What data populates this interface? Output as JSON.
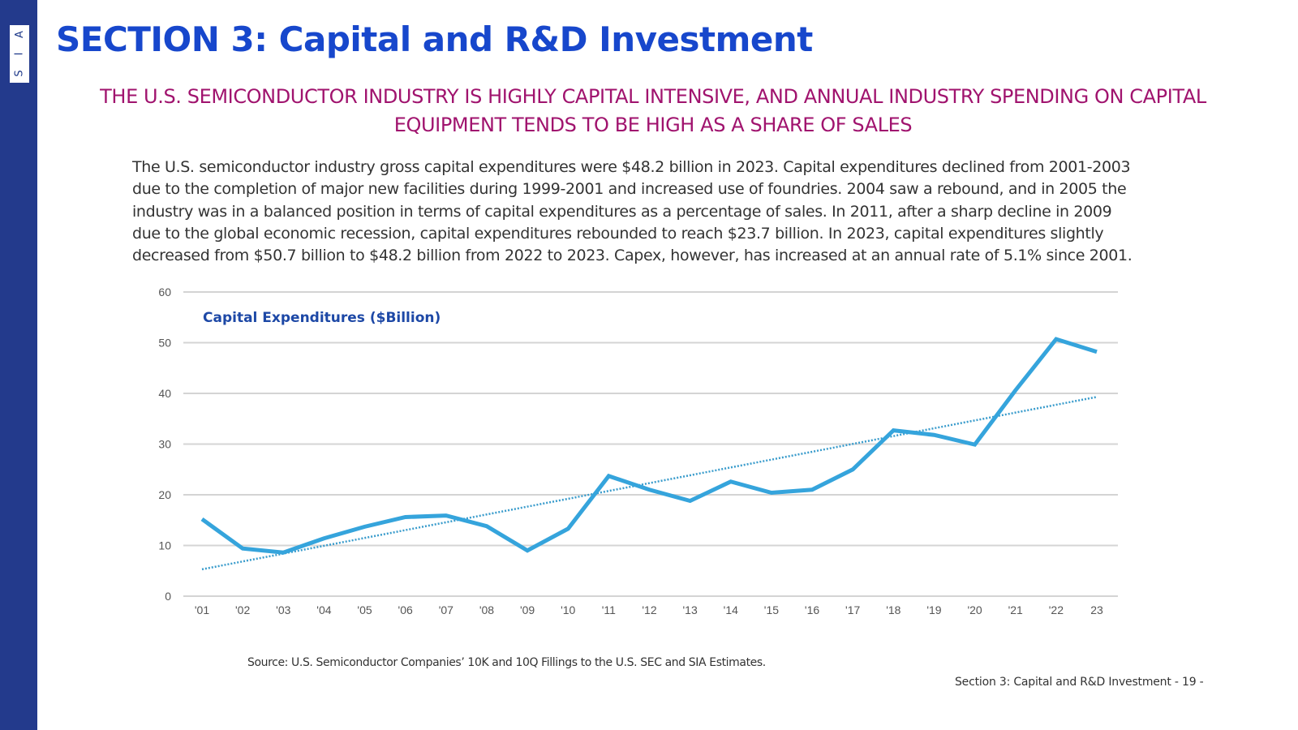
{
  "logo": {
    "letters": [
      "A",
      "I",
      "S"
    ]
  },
  "header": {
    "title": "SECTION 3: Capital and R&D Investment",
    "subtitle": "THE U.S. SEMICONDUCTOR INDUSTRY IS HIGHLY CAPITAL INTENSIVE, AND ANNUAL INDUSTRY SPENDING ON CAPITAL EQUIPMENT TENDS TO BE HIGH AS A SHARE OF SALES"
  },
  "body": {
    "paragraph": "The U.S. semiconductor industry gross capital expenditures were $48.2 billion in 2023. Capital expenditures declined from 2001-2003 due to the completion of major new facilities during 1999-2001 and increased use of foundries. 2004 saw a rebound, and in 2005 the industry was in a balanced position in terms of capital expenditures as a percentage of sales. In 2011, after a sharp decline in 2009 due to the global economic recession, capital expenditures rebounded to reach $23.7 billion. In 2023, capital expenditures slightly decreased from $50.7 billion to $48.2 billion from 2022 to 2023. Capex, however, has increased at an annual rate of 5.1% since 2001."
  },
  "chart_data": {
    "type": "line",
    "title": "Capital Expenditures ($Billion)",
    "xlabel": "",
    "ylabel": "",
    "categories": [
      "'01",
      "'02",
      "'03",
      "'04",
      "'05",
      "'06",
      "'07",
      "'08",
      "'09",
      "'10",
      "'11",
      "'12",
      "'13",
      "'14",
      "'15",
      "'16",
      "'17",
      "'18",
      "'19",
      "'20",
      "'21",
      "'22",
      "23"
    ],
    "series": [
      {
        "name": "Capital Expenditures",
        "values": [
          15.2,
          9.4,
          8.6,
          11.4,
          13.7,
          15.6,
          15.9,
          13.8,
          9.0,
          13.3,
          23.7,
          21.0,
          18.8,
          22.6,
          20.4,
          21.0,
          25.0,
          32.7,
          31.8,
          29.9,
          40.6,
          50.7,
          48.2
        ],
        "color": "#35a4dc",
        "style": "solid"
      },
      {
        "name": "Trend",
        "values": [
          5.3,
          39.3
        ],
        "style": "dotted",
        "color": "#3a9ccc",
        "note": "linear trendline from '01 to 23"
      }
    ],
    "yticks": [
      0,
      10,
      20,
      30,
      40,
      50,
      60
    ],
    "ylim": [
      0,
      60
    ],
    "grid": true,
    "legend": "none"
  },
  "footer": {
    "source": "Source: U.S. Semiconductor Companies’ 10K and 10Q Fillings to the U.S. SEC and SIA Estimates.",
    "page_label": "Section 3: Capital and R&D Investment  - 19 -"
  }
}
